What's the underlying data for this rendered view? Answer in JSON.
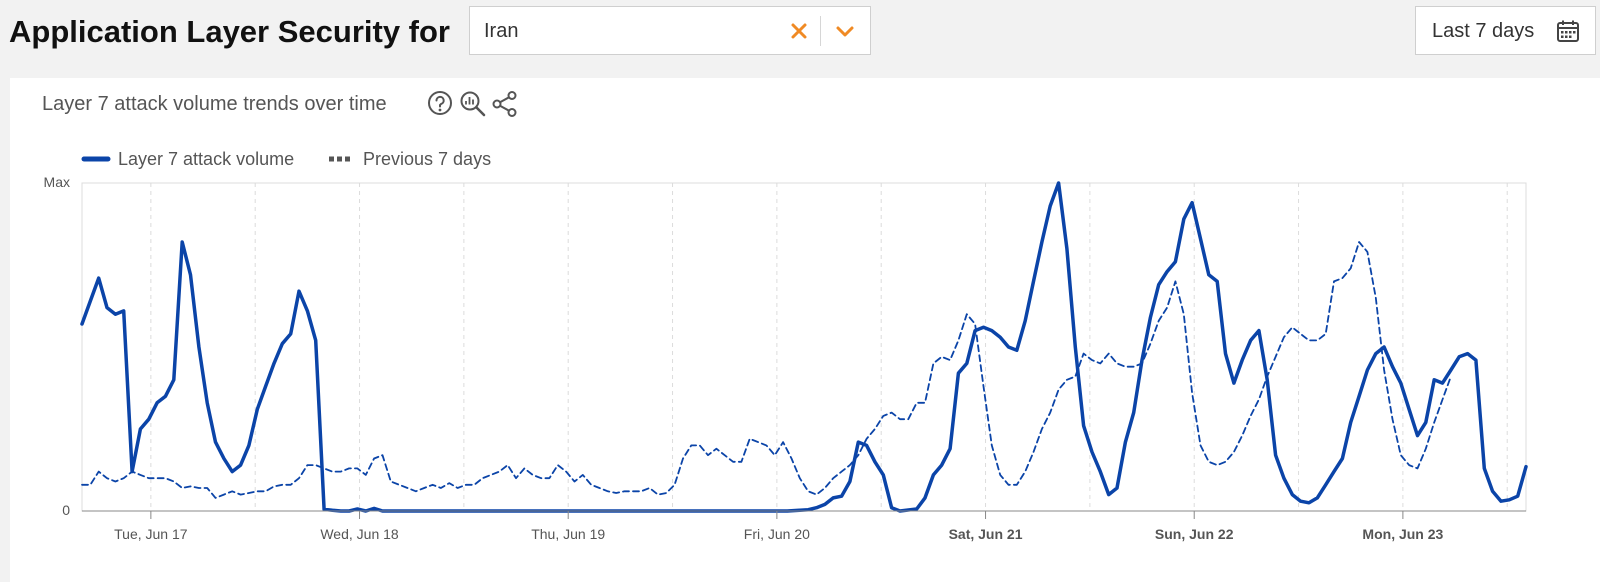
{
  "header": {
    "title": "Application Layer Security for",
    "location_value": "Iran",
    "date_range_label": "Last 7 days"
  },
  "card": {
    "subtitle": "Layer 7 attack volume trends over time"
  },
  "colors": {
    "series_primary": "#0b44a8",
    "series_previous": "#0b44a8",
    "accent": "#f08a24",
    "grid": "#dcdcdc"
  },
  "icons": [
    "close-icon",
    "chevron-down-icon",
    "calendar-icon",
    "help-icon",
    "zoom-icon",
    "share-icon"
  ],
  "chart_data": {
    "type": "line",
    "y_tick_labels": [
      "Max",
      "0"
    ],
    "ylim": [
      0,
      100
    ],
    "x_tick_labels": [
      {
        "label": "Tue, Jun 17",
        "x": 0.75,
        "bold": false
      },
      {
        "label": "Wed, Jun 18",
        "x": 1.75,
        "bold": false
      },
      {
        "label": "Thu, Jun 19",
        "x": 2.75,
        "bold": false
      },
      {
        "label": "Fri, Jun 20",
        "x": 3.75,
        "bold": false
      },
      {
        "label": "Sat, Jun 21",
        "x": 4.75,
        "bold": true
      },
      {
        "label": "Sun, Jun 22",
        "x": 5.75,
        "bold": true
      },
      {
        "label": "Mon, Jun 23",
        "x": 6.75,
        "bold": true
      }
    ],
    "xlim": [
      0.42,
      7.34
    ],
    "grid": "vertical dashed",
    "legend_position": "top-left",
    "series": [
      {
        "name": "Layer 7 attack volume",
        "style": "solid",
        "points": [
          [
            0.42,
            57
          ],
          [
            0.46,
            64
          ],
          [
            0.5,
            71
          ],
          [
            0.54,
            62
          ],
          [
            0.58,
            60
          ],
          [
            0.62,
            61
          ],
          [
            0.66,
            12
          ],
          [
            0.7,
            25
          ],
          [
            0.74,
            28
          ],
          [
            0.78,
            33
          ],
          [
            0.82,
            35
          ],
          [
            0.86,
            40
          ],
          [
            0.9,
            82
          ],
          [
            0.94,
            72
          ],
          [
            0.98,
            50
          ],
          [
            1.02,
            33
          ],
          [
            1.06,
            21
          ],
          [
            1.1,
            16
          ],
          [
            1.14,
            12
          ],
          [
            1.18,
            14
          ],
          [
            1.22,
            20
          ],
          [
            1.26,
            31
          ],
          [
            1.3,
            38
          ],
          [
            1.34,
            45
          ],
          [
            1.38,
            51
          ],
          [
            1.42,
            54
          ],
          [
            1.46,
            67
          ],
          [
            1.5,
            61
          ],
          [
            1.54,
            52
          ],
          [
            1.58,
            0.5
          ],
          [
            1.62,
            0.2
          ],
          [
            1.66,
            0
          ],
          [
            1.7,
            0
          ],
          [
            1.74,
            0.6
          ],
          [
            1.78,
            0
          ],
          [
            1.82,
            0.8
          ],
          [
            1.86,
            0
          ],
          [
            1.9,
            0
          ],
          [
            2.0,
            0
          ],
          [
            2.2,
            0
          ],
          [
            2.4,
            0
          ],
          [
            2.6,
            0
          ],
          [
            2.8,
            0
          ],
          [
            3.0,
            0
          ],
          [
            3.2,
            0
          ],
          [
            3.4,
            0
          ],
          [
            3.6,
            0
          ],
          [
            3.8,
            0
          ],
          [
            3.9,
            0.4
          ],
          [
            3.94,
            1
          ],
          [
            3.98,
            2
          ],
          [
            4.02,
            4
          ],
          [
            4.06,
            4.5
          ],
          [
            4.1,
            9
          ],
          [
            4.14,
            21
          ],
          [
            4.18,
            20
          ],
          [
            4.22,
            15
          ],
          [
            4.26,
            11
          ],
          [
            4.3,
            1
          ],
          [
            4.34,
            0
          ],
          [
            4.38,
            0.3
          ],
          [
            4.42,
            0.6
          ],
          [
            4.46,
            4
          ],
          [
            4.5,
            11
          ],
          [
            4.54,
            14
          ],
          [
            4.58,
            19
          ],
          [
            4.62,
            42
          ],
          [
            4.66,
            45
          ],
          [
            4.7,
            55
          ],
          [
            4.74,
            56
          ],
          [
            4.78,
            55
          ],
          [
            4.82,
            53
          ],
          [
            4.86,
            50
          ],
          [
            4.9,
            49
          ],
          [
            4.94,
            58
          ],
          [
            4.98,
            70
          ],
          [
            5.02,
            82
          ],
          [
            5.06,
            93
          ],
          [
            5.1,
            100
          ],
          [
            5.14,
            80
          ],
          [
            5.18,
            50
          ],
          [
            5.22,
            26
          ],
          [
            5.26,
            18
          ],
          [
            5.3,
            12
          ],
          [
            5.34,
            5
          ],
          [
            5.38,
            7
          ],
          [
            5.42,
            21
          ],
          [
            5.46,
            30
          ],
          [
            5.5,
            46
          ],
          [
            5.54,
            59
          ],
          [
            5.58,
            69
          ],
          [
            5.62,
            73
          ],
          [
            5.66,
            76
          ],
          [
            5.7,
            89
          ],
          [
            5.74,
            94
          ],
          [
            5.78,
            83
          ],
          [
            5.82,
            72
          ],
          [
            5.86,
            70
          ],
          [
            5.9,
            48
          ],
          [
            5.94,
            39
          ],
          [
            5.98,
            46
          ],
          [
            6.02,
            52
          ],
          [
            6.06,
            55
          ],
          [
            6.1,
            40
          ],
          [
            6.14,
            17
          ],
          [
            6.18,
            10
          ],
          [
            6.22,
            5
          ],
          [
            6.26,
            3
          ],
          [
            6.3,
            2.5
          ],
          [
            6.34,
            4
          ],
          [
            6.38,
            8
          ],
          [
            6.42,
            12
          ],
          [
            6.46,
            16
          ],
          [
            6.5,
            27
          ],
          [
            6.54,
            35
          ],
          [
            6.58,
            43
          ],
          [
            6.62,
            48
          ],
          [
            6.66,
            50
          ],
          [
            6.7,
            44
          ],
          [
            6.74,
            39
          ],
          [
            6.78,
            31
          ],
          [
            6.82,
            23
          ],
          [
            6.86,
            27
          ],
          [
            6.9,
            40
          ],
          [
            6.94,
            39
          ],
          [
            6.98,
            43
          ],
          [
            7.02,
            47
          ],
          [
            7.06,
            48
          ],
          [
            7.1,
            46
          ],
          [
            7.14,
            13
          ],
          [
            7.18,
            6
          ],
          [
            7.22,
            3
          ],
          [
            7.26,
            3.4
          ],
          [
            7.3,
            4.5
          ],
          [
            7.34,
            13.5
          ]
        ]
      },
      {
        "name": "Previous 7 days",
        "style": "dashed",
        "points": [
          [
            0.42,
            8
          ],
          [
            0.46,
            8
          ],
          [
            0.5,
            12
          ],
          [
            0.54,
            10
          ],
          [
            0.58,
            9
          ],
          [
            0.62,
            10
          ],
          [
            0.66,
            12
          ],
          [
            0.7,
            11
          ],
          [
            0.74,
            10
          ],
          [
            0.78,
            10
          ],
          [
            0.82,
            10
          ],
          [
            0.86,
            9
          ],
          [
            0.9,
            7
          ],
          [
            0.94,
            7.5
          ],
          [
            0.98,
            7
          ],
          [
            1.02,
            7
          ],
          [
            1.06,
            4
          ],
          [
            1.1,
            5
          ],
          [
            1.14,
            6
          ],
          [
            1.18,
            5
          ],
          [
            1.22,
            5.5
          ],
          [
            1.26,
            6
          ],
          [
            1.3,
            6
          ],
          [
            1.34,
            7.5
          ],
          [
            1.38,
            8
          ],
          [
            1.42,
            8
          ],
          [
            1.46,
            10
          ],
          [
            1.5,
            14
          ],
          [
            1.54,
            14
          ],
          [
            1.58,
            13
          ],
          [
            1.62,
            12
          ],
          [
            1.66,
            12
          ],
          [
            1.7,
            13
          ],
          [
            1.74,
            13
          ],
          [
            1.78,
            11
          ],
          [
            1.82,
            16
          ],
          [
            1.86,
            17
          ],
          [
            1.9,
            9
          ],
          [
            1.94,
            8
          ],
          [
            1.98,
            7
          ],
          [
            2.02,
            6
          ],
          [
            2.06,
            7
          ],
          [
            2.1,
            8
          ],
          [
            2.14,
            7
          ],
          [
            2.18,
            8.5
          ],
          [
            2.22,
            7
          ],
          [
            2.26,
            8
          ],
          [
            2.3,
            8
          ],
          [
            2.34,
            10
          ],
          [
            2.38,
            11
          ],
          [
            2.42,
            12
          ],
          [
            2.46,
            14
          ],
          [
            2.5,
            10
          ],
          [
            2.54,
            13
          ],
          [
            2.58,
            11
          ],
          [
            2.62,
            10
          ],
          [
            2.66,
            10
          ],
          [
            2.7,
            14
          ],
          [
            2.74,
            12
          ],
          [
            2.78,
            9
          ],
          [
            2.82,
            11
          ],
          [
            2.86,
            8
          ],
          [
            2.9,
            7
          ],
          [
            2.94,
            6
          ],
          [
            2.98,
            5.5
          ],
          [
            3.02,
            6
          ],
          [
            3.06,
            6
          ],
          [
            3.1,
            6
          ],
          [
            3.14,
            7
          ],
          [
            3.18,
            5
          ],
          [
            3.22,
            5.5
          ],
          [
            3.26,
            8
          ],
          [
            3.3,
            16
          ],
          [
            3.34,
            20
          ],
          [
            3.38,
            20
          ],
          [
            3.42,
            17
          ],
          [
            3.46,
            19
          ],
          [
            3.5,
            17
          ],
          [
            3.54,
            15
          ],
          [
            3.58,
            15
          ],
          [
            3.62,
            22
          ],
          [
            3.66,
            21
          ],
          [
            3.7,
            20
          ],
          [
            3.74,
            17
          ],
          [
            3.78,
            21
          ],
          [
            3.82,
            16
          ],
          [
            3.86,
            10
          ],
          [
            3.9,
            6
          ],
          [
            3.94,
            5
          ],
          [
            3.98,
            7
          ],
          [
            4.02,
            10
          ],
          [
            4.06,
            12
          ],
          [
            4.1,
            14
          ],
          [
            4.14,
            17
          ],
          [
            4.18,
            22
          ],
          [
            4.22,
            25
          ],
          [
            4.26,
            29
          ],
          [
            4.3,
            30
          ],
          [
            4.34,
            28
          ],
          [
            4.38,
            28
          ],
          [
            4.42,
            33
          ],
          [
            4.46,
            33
          ],
          [
            4.5,
            45
          ],
          [
            4.54,
            47
          ],
          [
            4.58,
            46
          ],
          [
            4.62,
            52
          ],
          [
            4.66,
            60
          ],
          [
            4.7,
            57
          ],
          [
            4.74,
            38
          ],
          [
            4.78,
            20
          ],
          [
            4.82,
            11
          ],
          [
            4.86,
            8
          ],
          [
            4.9,
            8
          ],
          [
            4.94,
            12
          ],
          [
            4.98,
            18
          ],
          [
            5.02,
            25
          ],
          [
            5.06,
            30
          ],
          [
            5.1,
            37
          ],
          [
            5.14,
            40
          ],
          [
            5.18,
            41
          ],
          [
            5.22,
            48
          ],
          [
            5.26,
            46
          ],
          [
            5.3,
            45
          ],
          [
            5.34,
            48
          ],
          [
            5.38,
            45
          ],
          [
            5.42,
            44
          ],
          [
            5.46,
            44
          ],
          [
            5.5,
            45
          ],
          [
            5.54,
            51
          ],
          [
            5.58,
            58
          ],
          [
            5.62,
            62
          ],
          [
            5.66,
            70
          ],
          [
            5.7,
            60
          ],
          [
            5.74,
            36
          ],
          [
            5.78,
            20
          ],
          [
            5.82,
            15
          ],
          [
            5.86,
            14
          ],
          [
            5.9,
            15
          ],
          [
            5.94,
            18
          ],
          [
            5.98,
            23
          ],
          [
            6.02,
            29
          ],
          [
            6.06,
            34
          ],
          [
            6.1,
            41
          ],
          [
            6.14,
            47
          ],
          [
            6.18,
            53
          ],
          [
            6.22,
            56
          ],
          [
            6.26,
            54
          ],
          [
            6.3,
            52
          ],
          [
            6.34,
            52
          ],
          [
            6.38,
            54
          ],
          [
            6.42,
            70
          ],
          [
            6.46,
            71
          ],
          [
            6.5,
            74
          ],
          [
            6.54,
            82
          ],
          [
            6.58,
            79
          ],
          [
            6.62,
            65
          ],
          [
            6.66,
            43
          ],
          [
            6.7,
            28
          ],
          [
            6.74,
            17
          ],
          [
            6.78,
            14
          ],
          [
            6.82,
            13
          ],
          [
            6.86,
            19
          ],
          [
            6.9,
            27
          ],
          [
            6.94,
            34
          ],
          [
            6.98,
            41
          ]
        ]
      }
    ]
  }
}
